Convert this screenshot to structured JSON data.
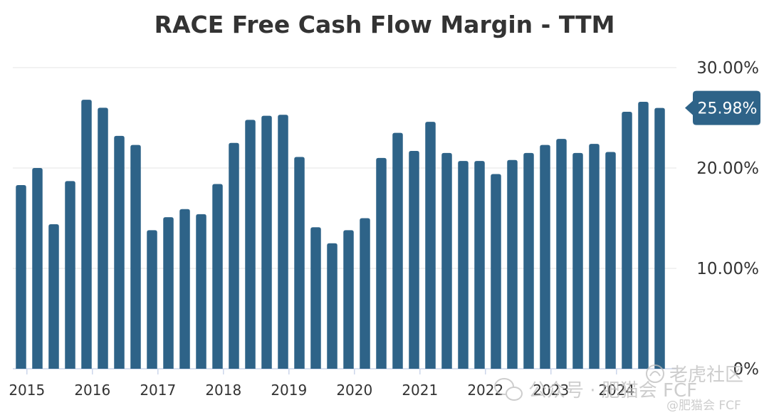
{
  "chart_data": {
    "type": "bar",
    "title": "RACE Free Cash Flow Margin - TTM",
    "xlabel": "",
    "ylabel": "",
    "ylim": [
      0,
      30
    ],
    "y_ticks": [
      "0%",
      "10.00%",
      "20.00%",
      "30.00%"
    ],
    "y_tick_values": [
      0,
      10,
      20,
      30
    ],
    "x_tick_labels": [
      "2015",
      "2016",
      "2017",
      "2018",
      "2019",
      "2020",
      "2021",
      "2022",
      "2023",
      "2024"
    ],
    "bar_color": "#2e6388",
    "series": [
      {
        "name": "Free Cash Flow Margin - TTM",
        "values": [
          18.3,
          20.0,
          14.4,
          18.7,
          26.8,
          26.0,
          23.2,
          22.3,
          13.8,
          15.1,
          15.9,
          15.4,
          18.4,
          22.5,
          24.8,
          25.2,
          25.3,
          21.1,
          14.1,
          12.5,
          13.8,
          15.0,
          21.0,
          23.5,
          21.7,
          24.6,
          21.5,
          20.7,
          20.7,
          19.4,
          20.8,
          21.5,
          22.3,
          22.9,
          21.5,
          22.4,
          21.6,
          25.6,
          26.6,
          25.98
        ]
      }
    ],
    "last_value_label": "25.98%"
  },
  "watermark": {
    "line1": "公众号 · 肥猫会 FCF",
    "line2": "老虎社区",
    "line3": "@肥猫会 FCF"
  }
}
